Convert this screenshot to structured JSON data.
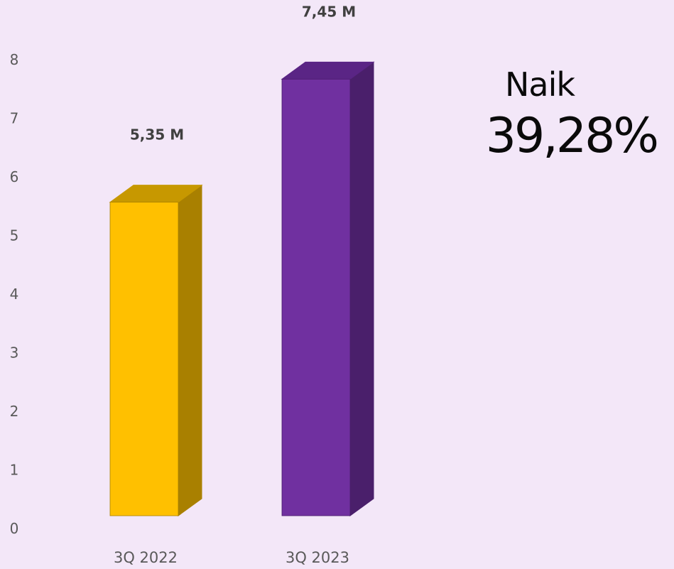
{
  "chart_data": {
    "type": "bar",
    "categories": [
      "3Q 2022",
      "3Q 2023"
    ],
    "values": [
      5.35,
      7.45
    ],
    "data_labels": [
      "5,35 M",
      "7,45 M"
    ],
    "ylim": [
      0,
      8
    ],
    "yticks": [
      "0",
      "1",
      "2",
      "3",
      "4",
      "5",
      "6",
      "7",
      "8"
    ],
    "grid": false,
    "style": "3d-column",
    "colors": {
      "bars": [
        "#ffc000",
        "#7030a0"
      ],
      "bar_sides": [
        "#a98000",
        "#4a1f6b"
      ],
      "bar_tops": [
        "#c79800",
        "#5a2585"
      ],
      "background": "#f3e7f8"
    }
  },
  "callout": {
    "label": "Naik",
    "value": "39,28%"
  }
}
